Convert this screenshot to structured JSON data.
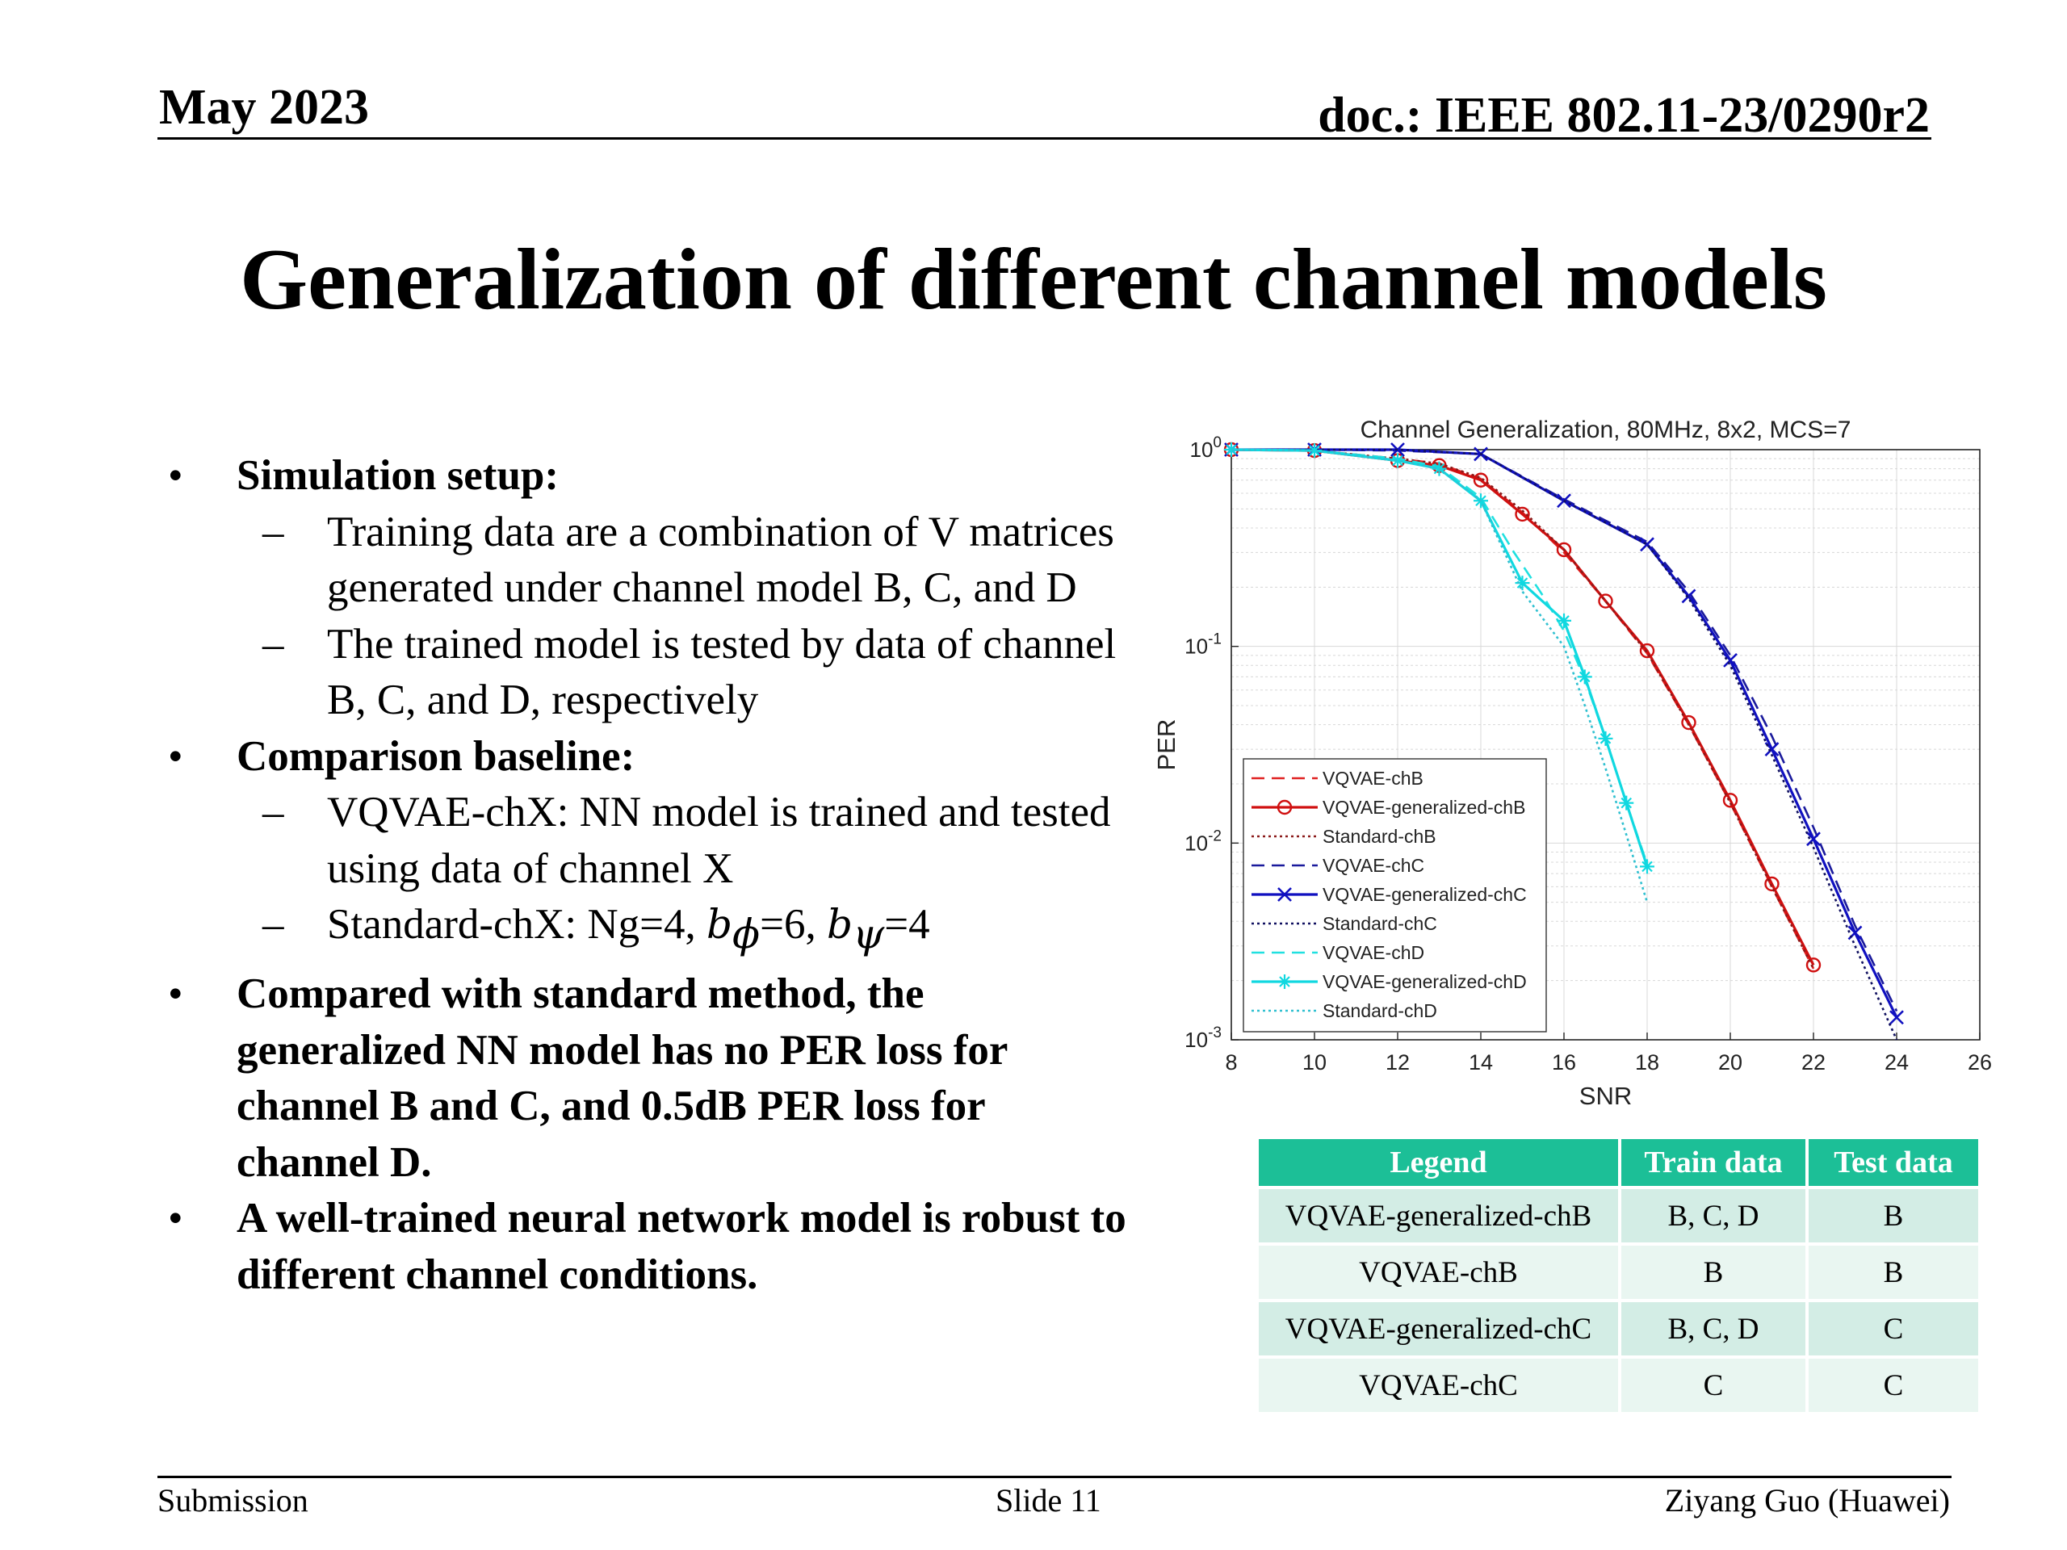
{
  "header": {
    "date": "May 2023",
    "doc": "doc.: IEEE 802.11-23/0290r2"
  },
  "title": "Generalization of different channel models",
  "bullets": {
    "sim_setup": "Simulation setup:",
    "sim_item1": "Training data are a combination of V matrices generated under channel model B, C, and D",
    "sim_item2": "The trained model is tested by data of channel B, C, and D, respectively",
    "baseline": "Comparison baseline:",
    "baseline_item1": "VQVAE-chX: NN model is trained and tested using data of channel X",
    "std_prefix": "Standard-chX: Ng=4, ",
    "std_b": "b",
    "std_phi": "ϕ",
    "std_eq6": "=6, ",
    "std_psi": "ψ",
    "std_eq4": "=4",
    "compare": "Compared with standard method, the generalized NN model has no PER loss for channel B and C, and 0.5dB PER loss for channel D.",
    "robust": "A well-trained neural network model is robust to different channel conditions."
  },
  "chart_data": {
    "type": "line",
    "title": "Channel Generalization, 80MHz, 8x2, MCS=7",
    "xlabel": "SNR",
    "ylabel": "PER",
    "xlim": [
      8,
      26
    ],
    "ylim": [
      0.001,
      1
    ],
    "yscale": "log",
    "xticks": [
      "8",
      "10",
      "12",
      "14",
      "16",
      "18",
      "20",
      "22",
      "24",
      "26"
    ],
    "yticks": [
      {
        "base": "10",
        "exp": "0",
        "value": 1
      },
      {
        "base": "10",
        "exp": "-1",
        "value": 0.1
      },
      {
        "base": "10",
        "exp": "-2",
        "value": 0.01
      },
      {
        "base": "10",
        "exp": "-3",
        "value": 0.001
      }
    ],
    "grid": true,
    "legend_position": "bottom-left",
    "series": [
      {
        "name": "VQVAE-chB",
        "color": "#e02020",
        "style": "dashed",
        "marker": "none",
        "x": [
          8,
          10,
          12,
          13,
          14,
          15,
          16,
          17,
          18,
          19,
          20,
          21,
          22
        ],
        "y": [
          1,
          0.99,
          0.9,
          0.85,
          0.71,
          0.48,
          0.3,
          0.17,
          0.092,
          0.04,
          0.016,
          0.006,
          0.0023
        ]
      },
      {
        "name": "VQVAE-generalized-chB",
        "color": "#d01010",
        "style": "solid",
        "marker": "circle",
        "x": [
          8,
          10,
          12,
          13,
          14,
          15,
          16,
          17,
          18,
          19,
          20,
          21,
          22
        ],
        "y": [
          1,
          0.99,
          0.88,
          0.83,
          0.7,
          0.47,
          0.31,
          0.17,
          0.095,
          0.041,
          0.0165,
          0.0062,
          0.0024
        ]
      },
      {
        "name": "Standard-chB",
        "color": "#8b1a1a",
        "style": "dotted",
        "marker": "none",
        "x": [
          8,
          10,
          12,
          13,
          14,
          15,
          16,
          17,
          18,
          19,
          20,
          21,
          22
        ],
        "y": [
          1,
          0.99,
          0.9,
          0.85,
          0.72,
          0.49,
          0.31,
          0.17,
          0.093,
          0.04,
          0.016,
          0.006,
          0.0023
        ]
      },
      {
        "name": "VQVAE-chC",
        "color": "#1a1a9c",
        "style": "dashed",
        "marker": "none",
        "x": [
          8,
          10,
          12,
          14,
          16,
          18,
          19,
          20,
          21,
          22,
          23,
          24
        ],
        "y": [
          1,
          1,
          0.99,
          0.95,
          0.56,
          0.34,
          0.19,
          0.09,
          0.035,
          0.012,
          0.0038,
          0.0014
        ]
      },
      {
        "name": "VQVAE-generalized-chC",
        "color": "#1010c0",
        "style": "solid",
        "marker": "x",
        "x": [
          8,
          10,
          12,
          14,
          16,
          18,
          19,
          20,
          21,
          22,
          23,
          24
        ],
        "y": [
          1,
          1,
          1,
          0.95,
          0.55,
          0.33,
          0.18,
          0.085,
          0.03,
          0.0105,
          0.0035,
          0.0013
        ]
      },
      {
        "name": "Standard-chC",
        "color": "#101060",
        "style": "dotted",
        "marker": "none",
        "x": [
          8,
          10,
          12,
          14,
          16,
          18,
          19,
          20,
          21,
          22,
          23,
          24
        ],
        "y": [
          1,
          1,
          1,
          0.95,
          0.55,
          0.33,
          0.175,
          0.08,
          0.028,
          0.0095,
          0.003,
          0.001
        ]
      },
      {
        "name": "VQVAE-chD",
        "color": "#20e0e0",
        "style": "dashed",
        "marker": "none",
        "x": [
          8,
          10,
          12,
          13,
          14,
          14.8,
          15.5,
          16,
          16.5,
          17,
          17.5,
          18
        ],
        "y": [
          1,
          0.99,
          0.9,
          0.82,
          0.57,
          0.3,
          0.18,
          0.12,
          0.068,
          0.034,
          0.016,
          0.0078
        ]
      },
      {
        "name": "VQVAE-generalized-chD",
        "color": "#10d8e0",
        "style": "solid",
        "marker": "star",
        "x": [
          8,
          10,
          12,
          13,
          14,
          15,
          16,
          16.5,
          17,
          17.5,
          18
        ],
        "y": [
          1,
          0.99,
          0.88,
          0.8,
          0.55,
          0.21,
          0.135,
          0.07,
          0.034,
          0.016,
          0.0076
        ]
      },
      {
        "name": "Standard-chD",
        "color": "#30c0d0",
        "style": "dotted",
        "marker": "none",
        "x": [
          8,
          10,
          12,
          13,
          14,
          15,
          16,
          16.5,
          17,
          17.5,
          18
        ],
        "y": [
          1,
          0.99,
          0.88,
          0.8,
          0.55,
          0.19,
          0.1,
          0.05,
          0.024,
          0.011,
          0.005
        ]
      }
    ]
  },
  "table": {
    "headers": [
      "Legend",
      "Train data",
      "Test data"
    ],
    "rows": [
      [
        "VQVAE-generalized-chB",
        "B, C, D",
        "B"
      ],
      [
        "VQVAE-chB",
        "B",
        "B"
      ],
      [
        "VQVAE-generalized-chC",
        "B, C, D",
        "C"
      ],
      [
        "VQVAE-chC",
        "C",
        "C"
      ]
    ]
  },
  "footer": {
    "left": "Submission",
    "center": "Slide 11",
    "right": "Ziyang Guo (Huawei)"
  }
}
